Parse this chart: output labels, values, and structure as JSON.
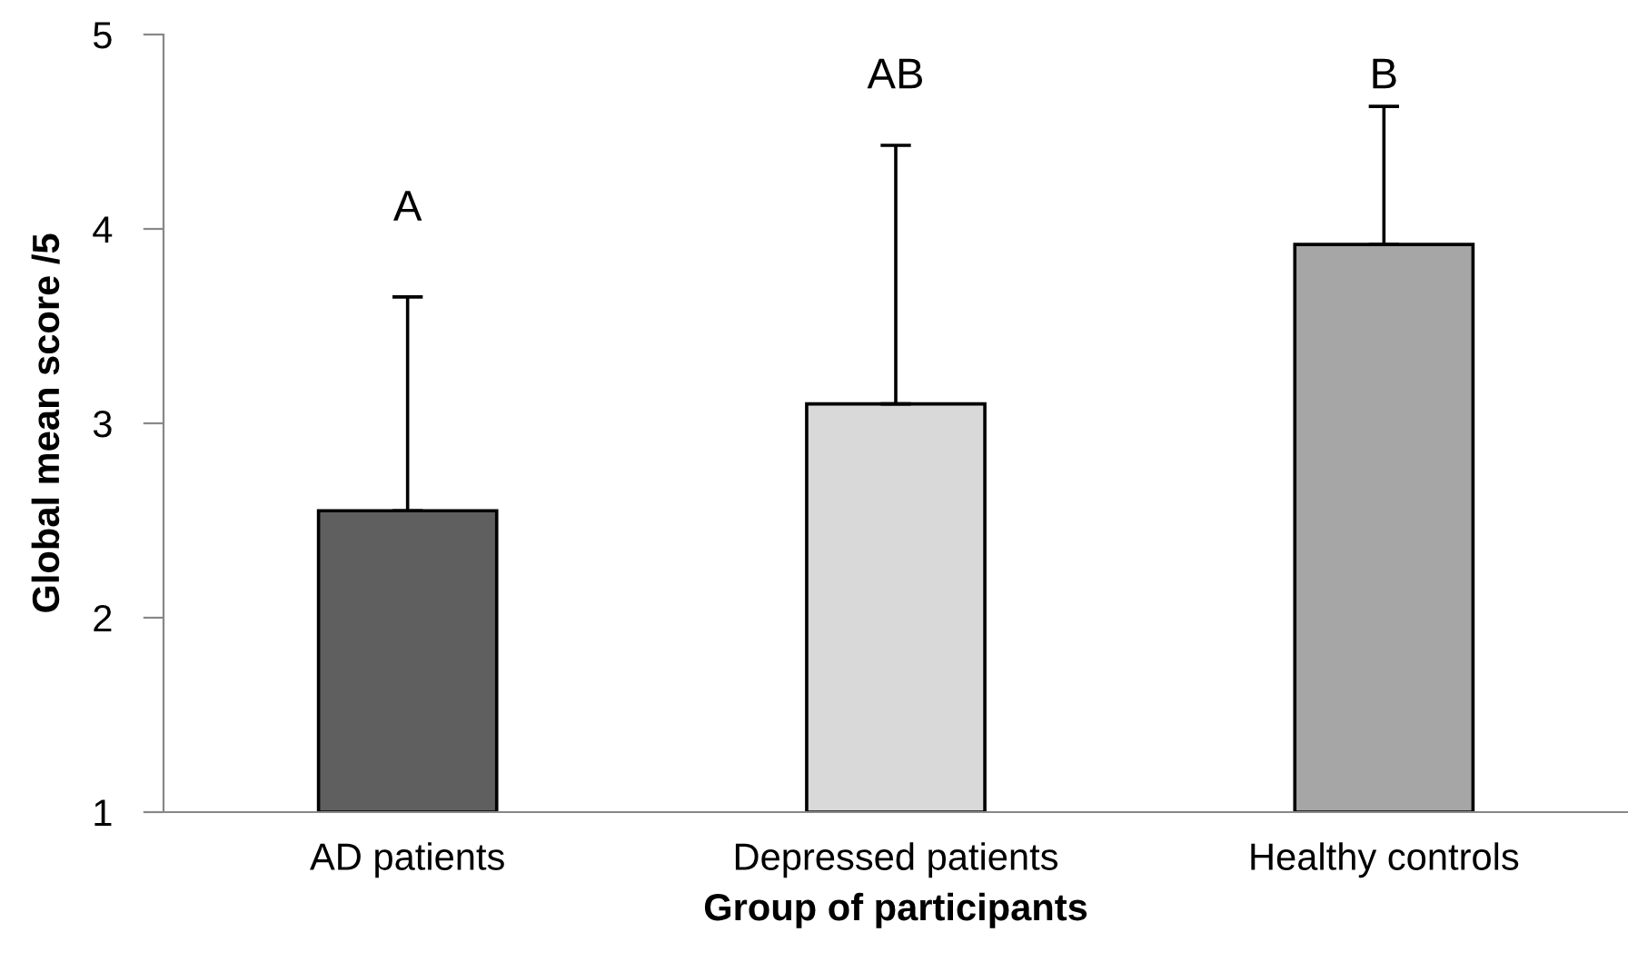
{
  "chart_data": {
    "type": "bar",
    "xlabel": "Group of participants",
    "ylabel": "Global mean score /5",
    "categories": [
      "AD patients",
      "Depressed patients",
      "Healthy controls"
    ],
    "values": [
      2.55,
      3.1,
      3.92
    ],
    "colors": [
      "#5f5f5f",
      "#d9d9d9",
      "#a6a6a6"
    ],
    "errors": [
      [
        2.55,
        3.65
      ],
      [
        3.1,
        4.43
      ],
      [
        3.92,
        4.63
      ]
    ],
    "ylim": [
      1,
      5
    ],
    "yticks": [
      1,
      2,
      3,
      4,
      5
    ],
    "grid": false,
    "annotations": [
      "A",
      "AB",
      "B"
    ]
  }
}
